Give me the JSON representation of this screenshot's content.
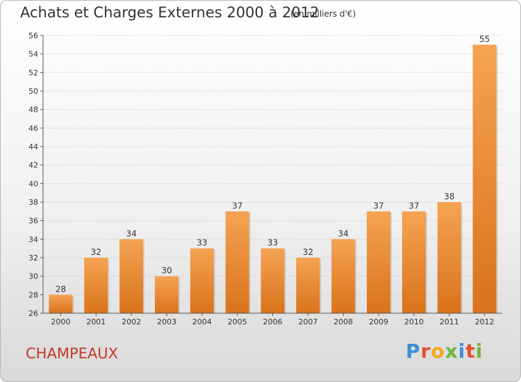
{
  "header": {
    "title": "Achats et Charges Externes 2000 à 2012",
    "subtitle": "(en milliers d'€)"
  },
  "footer": {
    "town": "CHAMPEAUX",
    "logo": "Proxiti"
  },
  "colors": {
    "bar_top": "#f5a352",
    "bar_bottom": "#d9731c",
    "grid": "#cfcfcf",
    "text": "#333333",
    "town": "#c0392b",
    "logo_letters": [
      "#3b8fd6",
      "#e0522d",
      "#f2a81d",
      "#6fb43f",
      "#3b8fd6",
      "#e0522d",
      "#6fb43f"
    ]
  },
  "chart_data": {
    "type": "bar",
    "title": "Achats et Charges Externes 2000 à 2012",
    "subtitle": "(en milliers d'€)",
    "categories": [
      "2000",
      "2001",
      "2002",
      "2003",
      "2004",
      "2005",
      "2006",
      "2007",
      "2008",
      "2009",
      "2010",
      "2011",
      "2012"
    ],
    "values": [
      28,
      32,
      34,
      30,
      33,
      37,
      33,
      32,
      34,
      37,
      37,
      38,
      55
    ],
    "ylim": [
      26,
      56
    ],
    "yticks": [
      26,
      28,
      30,
      32,
      34,
      36,
      38,
      40,
      42,
      44,
      46,
      48,
      50,
      52,
      54,
      56
    ],
    "grid": true,
    "xlabel": "",
    "ylabel": ""
  }
}
